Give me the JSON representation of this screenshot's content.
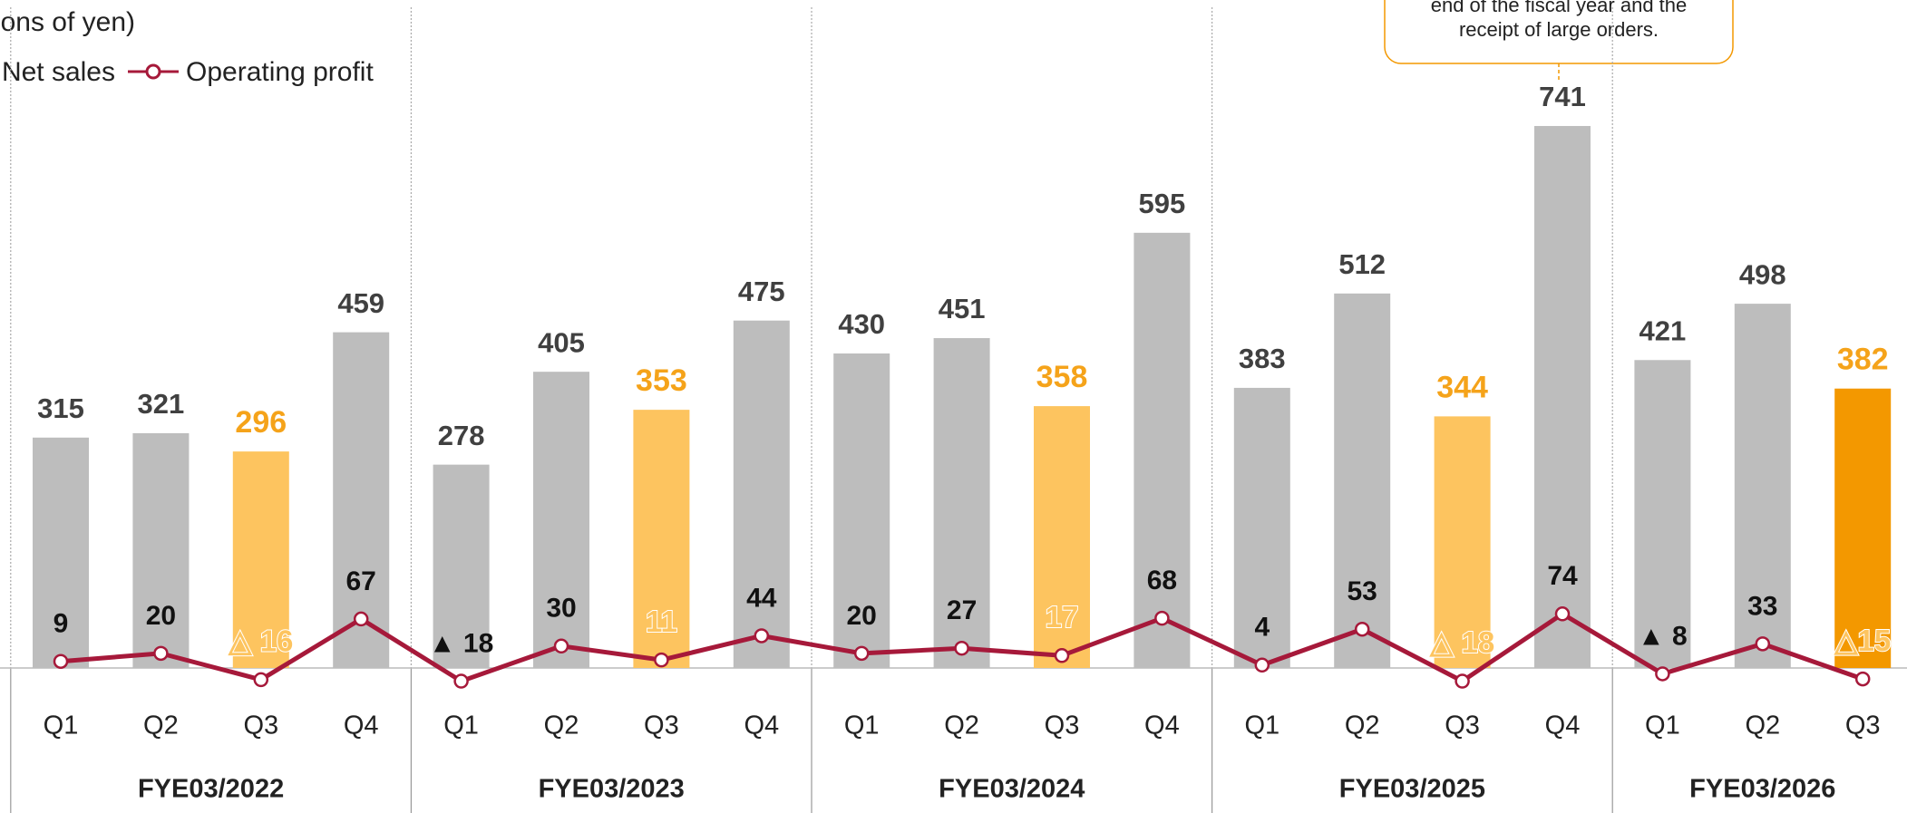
{
  "chart_data": {
    "type": "bar_line",
    "unit_label": "(Millions of yen)",
    "annotation": [
      "end of the fiscal year and the",
      "receipt of large orders."
    ],
    "categories": [
      "Q1",
      "Q2",
      "Q3",
      "Q4",
      "Q1",
      "Q2",
      "Q3",
      "Q4",
      "Q1",
      "Q2",
      "Q3",
      "Q4",
      "Q1",
      "Q2",
      "Q3",
      "Q4",
      "Q1",
      "Q2",
      "Q3"
    ],
    "groups": [
      {
        "name": "FYE03/2022",
        "size": 4
      },
      {
        "name": "FYE03/2023",
        "size": 4
      },
      {
        "name": "FYE03/2024",
        "size": 4
      },
      {
        "name": "FYE03/2025",
        "size": 4
      },
      {
        "name": "FYE03/2026",
        "size": 3
      }
    ],
    "series": [
      {
        "name": "Net sales",
        "type": "bar",
        "color": "#bdbdbd",
        "colors": [
          "#bdbdbd",
          "#bdbdbd",
          "#fdc45f",
          "#bdbdbd",
          "#bdbdbd",
          "#bdbdbd",
          "#fdc45f",
          "#bdbdbd",
          "#bdbdbd",
          "#bdbdbd",
          "#fdc45f",
          "#bdbdbd",
          "#bdbdbd",
          "#bdbdbd",
          "#fdc45f",
          "#bdbdbd",
          "#bdbdbd",
          "#bdbdbd",
          "#f39800"
        ],
        "values": [
          315,
          321,
          296,
          459,
          278,
          405,
          353,
          475,
          430,
          451,
          358,
          595,
          383,
          512,
          344,
          741,
          421,
          498,
          382
        ]
      },
      {
        "name": "Operating profit",
        "type": "line",
        "color": "#a6193a",
        "values": [
          9,
          20,
          -16,
          67,
          -18,
          30,
          11,
          44,
          20,
          27,
          17,
          68,
          4,
          53,
          -18,
          74,
          -8,
          33,
          -15
        ],
        "value_labels": [
          "9",
          "20",
          "△ 16",
          "67",
          "▲ 18",
          "30",
          "11",
          "44",
          "20",
          "27",
          "17",
          "68",
          "4",
          "53",
          "△ 18",
          "74",
          "▲ 8",
          "33",
          "△15"
        ]
      }
    ]
  }
}
